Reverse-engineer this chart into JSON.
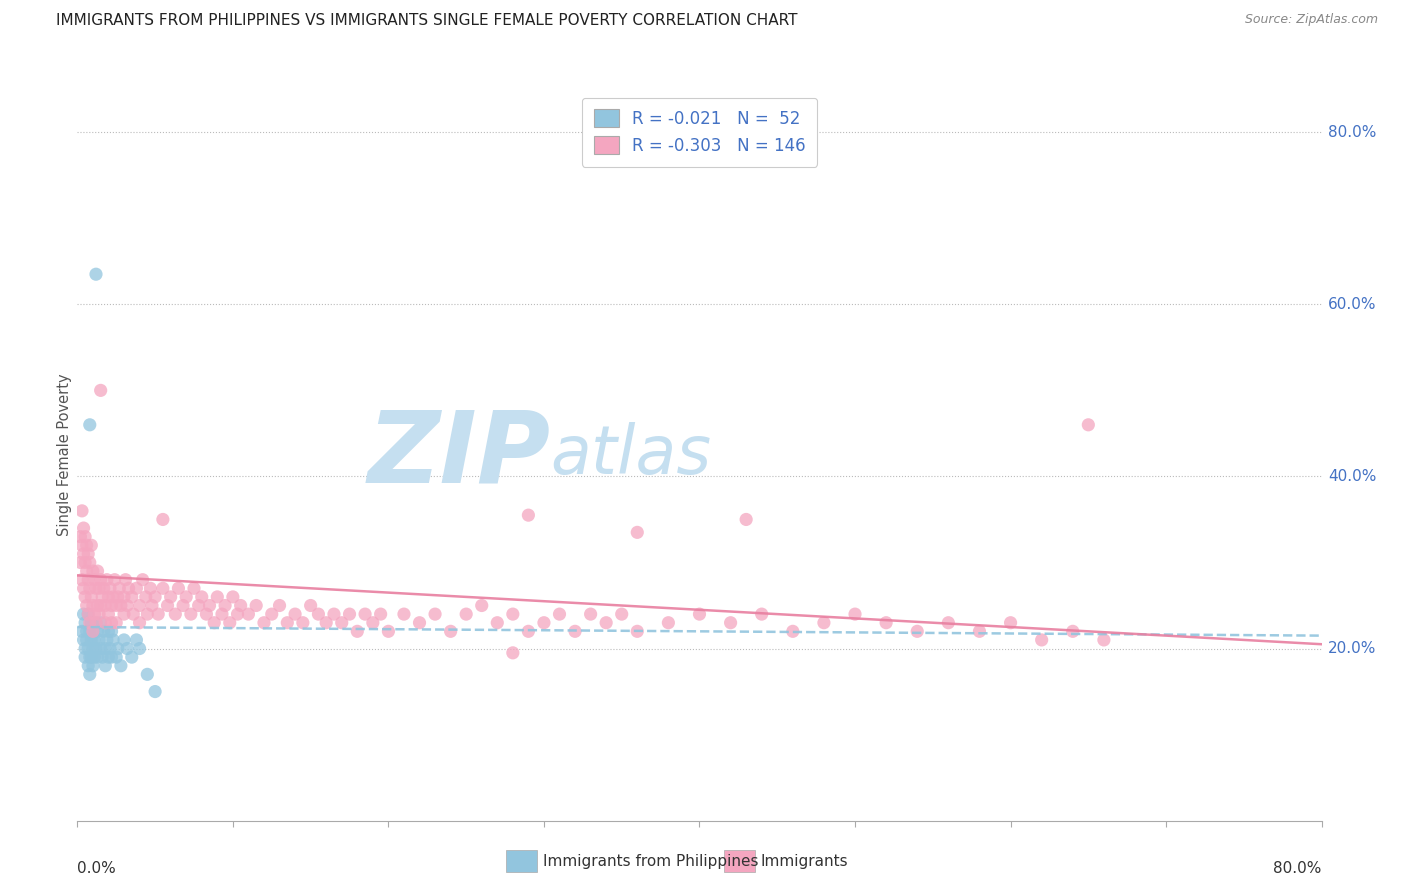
{
  "title": "IMMIGRANTS FROM PHILIPPINES VS IMMIGRANTS SINGLE FEMALE POVERTY CORRELATION CHART",
  "source": "Source: ZipAtlas.com",
  "ylabel": "Single Female Poverty",
  "legend_blue_R": "R = -0.021",
  "legend_blue_N": "N =  52",
  "legend_pink_R": "R = -0.303",
  "legend_pink_N": "N = 146",
  "legend_blue_label": "Immigrants from Philippines",
  "legend_pink_label": "Immigrants",
  "blue_color": "#92c5de",
  "pink_color": "#f4a6c0",
  "blue_scatter": [
    [
      0.003,
      0.22
    ],
    [
      0.004,
      0.24
    ],
    [
      0.004,
      0.21
    ],
    [
      0.005,
      0.23
    ],
    [
      0.005,
      0.2
    ],
    [
      0.005,
      0.19
    ],
    [
      0.006,
      0.22
    ],
    [
      0.006,
      0.21
    ],
    [
      0.007,
      0.24
    ],
    [
      0.007,
      0.2
    ],
    [
      0.007,
      0.18
    ],
    [
      0.008,
      0.22
    ],
    [
      0.008,
      0.19
    ],
    [
      0.008,
      0.17
    ],
    [
      0.009,
      0.23
    ],
    [
      0.009,
      0.21
    ],
    [
      0.009,
      0.19
    ],
    [
      0.01,
      0.22
    ],
    [
      0.01,
      0.2
    ],
    [
      0.01,
      0.18
    ],
    [
      0.011,
      0.21
    ],
    [
      0.011,
      0.19
    ],
    [
      0.012,
      0.23
    ],
    [
      0.012,
      0.2
    ],
    [
      0.013,
      0.22
    ],
    [
      0.013,
      0.19
    ],
    [
      0.014,
      0.21
    ],
    [
      0.015,
      0.23
    ],
    [
      0.015,
      0.2
    ],
    [
      0.016,
      0.19
    ],
    [
      0.017,
      0.22
    ],
    [
      0.018,
      0.2
    ],
    [
      0.018,
      0.18
    ],
    [
      0.019,
      0.21
    ],
    [
      0.02,
      0.22
    ],
    [
      0.02,
      0.19
    ],
    [
      0.021,
      0.2
    ],
    [
      0.022,
      0.22
    ],
    [
      0.022,
      0.19
    ],
    [
      0.023,
      0.21
    ],
    [
      0.025,
      0.19
    ],
    [
      0.026,
      0.2
    ],
    [
      0.028,
      0.18
    ],
    [
      0.03,
      0.21
    ],
    [
      0.032,
      0.2
    ],
    [
      0.035,
      0.19
    ],
    [
      0.038,
      0.21
    ],
    [
      0.04,
      0.2
    ],
    [
      0.045,
      0.17
    ],
    [
      0.05,
      0.15
    ],
    [
      0.012,
      0.635
    ],
    [
      0.008,
      0.46
    ]
  ],
  "pink_scatter": [
    [
      0.002,
      0.33
    ],
    [
      0.002,
      0.3
    ],
    [
      0.003,
      0.36
    ],
    [
      0.003,
      0.32
    ],
    [
      0.003,
      0.28
    ],
    [
      0.004,
      0.34
    ],
    [
      0.004,
      0.31
    ],
    [
      0.004,
      0.27
    ],
    [
      0.005,
      0.33
    ],
    [
      0.005,
      0.3
    ],
    [
      0.005,
      0.26
    ],
    [
      0.006,
      0.32
    ],
    [
      0.006,
      0.29
    ],
    [
      0.006,
      0.25
    ],
    [
      0.007,
      0.31
    ],
    [
      0.007,
      0.28
    ],
    [
      0.007,
      0.24
    ],
    [
      0.008,
      0.3
    ],
    [
      0.008,
      0.27
    ],
    [
      0.008,
      0.23
    ],
    [
      0.009,
      0.32
    ],
    [
      0.009,
      0.26
    ],
    [
      0.01,
      0.29
    ],
    [
      0.01,
      0.25
    ],
    [
      0.01,
      0.22
    ],
    [
      0.011,
      0.28
    ],
    [
      0.011,
      0.24
    ],
    [
      0.012,
      0.27
    ],
    [
      0.012,
      0.23
    ],
    [
      0.013,
      0.29
    ],
    [
      0.013,
      0.25
    ],
    [
      0.014,
      0.27
    ],
    [
      0.014,
      0.24
    ],
    [
      0.015,
      0.28
    ],
    [
      0.015,
      0.25
    ],
    [
      0.016,
      0.26
    ],
    [
      0.017,
      0.27
    ],
    [
      0.018,
      0.25
    ],
    [
      0.018,
      0.23
    ],
    [
      0.019,
      0.28
    ],
    [
      0.02,
      0.26
    ],
    [
      0.02,
      0.24
    ],
    [
      0.021,
      0.27
    ],
    [
      0.022,
      0.25
    ],
    [
      0.022,
      0.23
    ],
    [
      0.023,
      0.26
    ],
    [
      0.024,
      0.28
    ],
    [
      0.025,
      0.25
    ],
    [
      0.025,
      0.23
    ],
    [
      0.026,
      0.26
    ],
    [
      0.027,
      0.27
    ],
    [
      0.028,
      0.25
    ],
    [
      0.03,
      0.26
    ],
    [
      0.03,
      0.24
    ],
    [
      0.031,
      0.28
    ],
    [
      0.032,
      0.25
    ],
    [
      0.033,
      0.27
    ],
    [
      0.035,
      0.26
    ],
    [
      0.036,
      0.24
    ],
    [
      0.038,
      0.27
    ],
    [
      0.04,
      0.25
    ],
    [
      0.04,
      0.23
    ],
    [
      0.042,
      0.28
    ],
    [
      0.044,
      0.26
    ],
    [
      0.045,
      0.24
    ],
    [
      0.047,
      0.27
    ],
    [
      0.048,
      0.25
    ],
    [
      0.05,
      0.26
    ],
    [
      0.052,
      0.24
    ],
    [
      0.055,
      0.27
    ],
    [
      0.058,
      0.25
    ],
    [
      0.06,
      0.26
    ],
    [
      0.063,
      0.24
    ],
    [
      0.065,
      0.27
    ],
    [
      0.068,
      0.25
    ],
    [
      0.07,
      0.26
    ],
    [
      0.073,
      0.24
    ],
    [
      0.075,
      0.27
    ],
    [
      0.078,
      0.25
    ],
    [
      0.08,
      0.26
    ],
    [
      0.083,
      0.24
    ],
    [
      0.085,
      0.25
    ],
    [
      0.088,
      0.23
    ],
    [
      0.09,
      0.26
    ],
    [
      0.093,
      0.24
    ],
    [
      0.095,
      0.25
    ],
    [
      0.098,
      0.23
    ],
    [
      0.1,
      0.26
    ],
    [
      0.103,
      0.24
    ],
    [
      0.105,
      0.25
    ],
    [
      0.11,
      0.24
    ],
    [
      0.115,
      0.25
    ],
    [
      0.12,
      0.23
    ],
    [
      0.125,
      0.24
    ],
    [
      0.13,
      0.25
    ],
    [
      0.135,
      0.23
    ],
    [
      0.14,
      0.24
    ],
    [
      0.145,
      0.23
    ],
    [
      0.15,
      0.25
    ],
    [
      0.155,
      0.24
    ],
    [
      0.16,
      0.23
    ],
    [
      0.165,
      0.24
    ],
    [
      0.17,
      0.23
    ],
    [
      0.175,
      0.24
    ],
    [
      0.18,
      0.22
    ],
    [
      0.185,
      0.24
    ],
    [
      0.19,
      0.23
    ],
    [
      0.195,
      0.24
    ],
    [
      0.2,
      0.22
    ],
    [
      0.21,
      0.24
    ],
    [
      0.22,
      0.23
    ],
    [
      0.23,
      0.24
    ],
    [
      0.24,
      0.22
    ],
    [
      0.25,
      0.24
    ],
    [
      0.26,
      0.25
    ],
    [
      0.27,
      0.23
    ],
    [
      0.28,
      0.24
    ],
    [
      0.29,
      0.22
    ],
    [
      0.3,
      0.23
    ],
    [
      0.31,
      0.24
    ],
    [
      0.32,
      0.22
    ],
    [
      0.33,
      0.24
    ],
    [
      0.34,
      0.23
    ],
    [
      0.35,
      0.24
    ],
    [
      0.36,
      0.22
    ],
    [
      0.38,
      0.23
    ],
    [
      0.4,
      0.24
    ],
    [
      0.42,
      0.23
    ],
    [
      0.44,
      0.24
    ],
    [
      0.46,
      0.22
    ],
    [
      0.48,
      0.23
    ],
    [
      0.5,
      0.24
    ],
    [
      0.52,
      0.23
    ],
    [
      0.54,
      0.22
    ],
    [
      0.56,
      0.23
    ],
    [
      0.58,
      0.22
    ],
    [
      0.6,
      0.23
    ],
    [
      0.62,
      0.21
    ],
    [
      0.64,
      0.22
    ],
    [
      0.66,
      0.21
    ],
    [
      0.015,
      0.5
    ],
    [
      0.29,
      0.355
    ],
    [
      0.36,
      0.335
    ],
    [
      0.43,
      0.35
    ],
    [
      0.65,
      0.46
    ],
    [
      0.055,
      0.35
    ],
    [
      0.28,
      0.195
    ]
  ],
  "xlim": [
    0.0,
    0.8
  ],
  "ylim": [
    0.0,
    0.85
  ],
  "right_yticks": [
    0.2,
    0.4,
    0.6,
    0.8
  ],
  "right_ytick_labels": [
    "20.0%",
    "40.0%",
    "60.0%",
    "80.0%"
  ],
  "x_ticks": [
    0.0,
    0.1,
    0.2,
    0.3,
    0.4,
    0.5,
    0.6,
    0.7,
    0.8
  ],
  "background_color": "#ffffff",
  "title_fontsize": 11,
  "blue_trend_start": 0.225,
  "blue_trend_end": 0.215,
  "pink_trend_start": 0.285,
  "pink_trend_end": 0.205
}
